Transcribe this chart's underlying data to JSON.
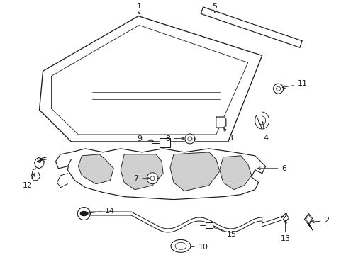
{
  "bg_color": "#ffffff",
  "line_color": "#1a1a1a",
  "fig_width": 4.89,
  "fig_height": 3.6,
  "dpi": 100,
  "font_size": 8.0,
  "line_width": 0.85
}
